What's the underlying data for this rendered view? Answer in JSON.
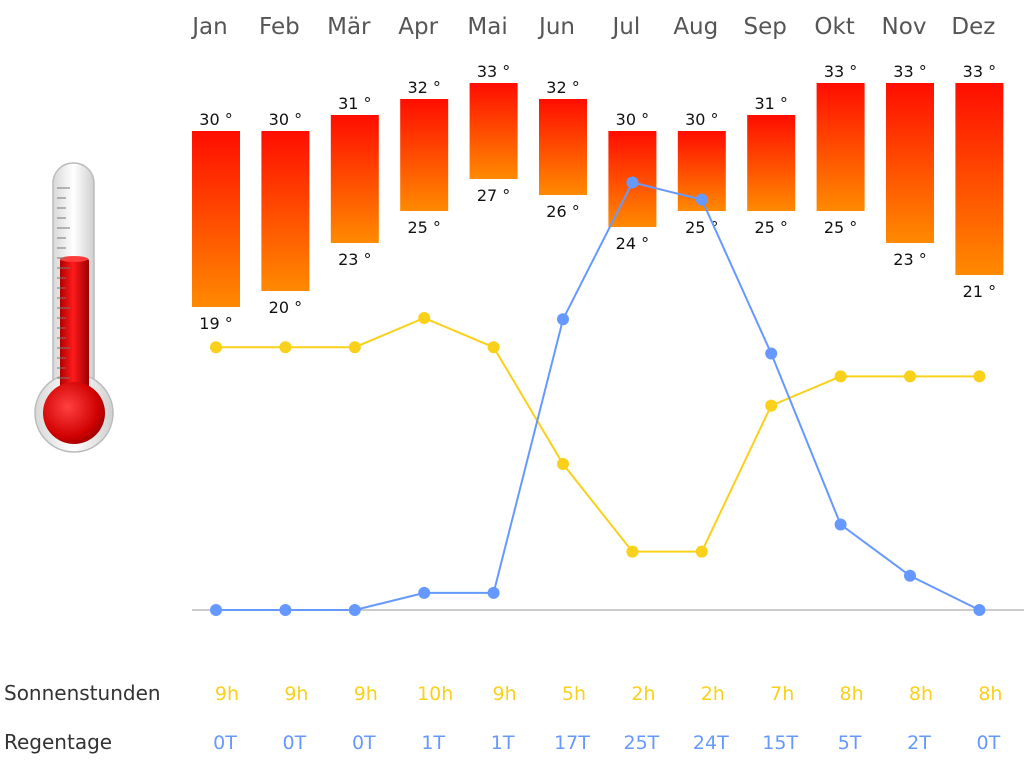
{
  "colors": {
    "sun": "#F9D01A",
    "rain": "#6699FF",
    "bar_top": "#FF0D00",
    "bar_bottom": "#FF8A00",
    "axis": "#999999"
  },
  "icon": "thermometer-icon",
  "rows": {
    "sun_label": "Sonnenstunden",
    "rain_label": "Regentage"
  },
  "chart_data": {
    "type": "bar",
    "categories": [
      "Jan",
      "Feb",
      "Mär",
      "Apr",
      "Mai",
      "Jun",
      "Jul",
      "Aug",
      "Sep",
      "Okt",
      "Nov",
      "Dez"
    ],
    "temperature": {
      "max": [
        30,
        30,
        31,
        32,
        33,
        32,
        30,
        30,
        31,
        33,
        33,
        33
      ],
      "min": [
        19,
        20,
        23,
        25,
        27,
        26,
        24,
        25,
        25,
        25,
        23,
        21
      ],
      "max_labels": [
        "30 °",
        "30 °",
        "31 °",
        "32 °",
        "33 °",
        "32 °",
        "30 °",
        "30 °",
        "31 °",
        "33 °",
        "33 °",
        "33 °"
      ],
      "min_labels": [
        "19 °",
        "20 °",
        "23 °",
        "25 °",
        "27 °",
        "26 °",
        "24 °",
        "25 °",
        "25 °",
        "25 °",
        "23 °",
        "21 °"
      ]
    },
    "series": [
      {
        "name": "Sonnenstunden",
        "type": "line",
        "values": [
          9,
          9,
          9,
          10,
          9,
          5,
          2,
          2,
          7,
          8,
          8,
          8
        ],
        "labels": [
          "9h",
          "9h",
          "9h",
          "10h",
          "9h",
          "5h",
          "2h",
          "2h",
          "7h",
          "8h",
          "8h",
          "8h"
        ]
      },
      {
        "name": "Regentage",
        "type": "line",
        "values": [
          0,
          0,
          0,
          1,
          1,
          17,
          25,
          24,
          15,
          5,
          2,
          0
        ],
        "labels": [
          "0T",
          "0T",
          "0T",
          "1T",
          "1T",
          "17T",
          "25T",
          "24T",
          "15T",
          "5T",
          "2T",
          "0T"
        ]
      }
    ]
  }
}
